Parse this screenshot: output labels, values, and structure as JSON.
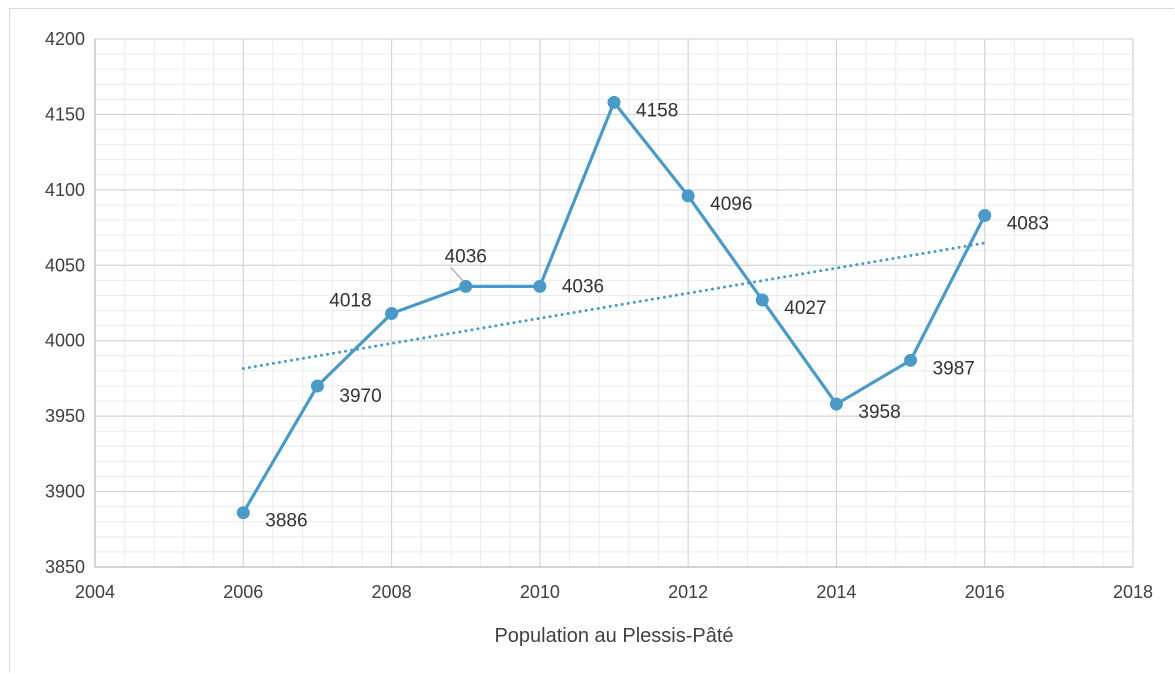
{
  "chart_data": {
    "type": "line",
    "xlabel": "Population au Plessis-Pâté",
    "ylabel": "",
    "title": "",
    "xlim": [
      2004,
      2018
    ],
    "ylim": [
      3850,
      4200
    ],
    "x_ticks": [
      2004,
      2006,
      2008,
      2010,
      2012,
      2014,
      2016,
      2018
    ],
    "y_ticks": [
      3850,
      3900,
      3950,
      4000,
      4050,
      4100,
      4150,
      4200
    ],
    "grid": true,
    "legend": "none",
    "series": [
      {
        "x": [
          2006,
          2007,
          2008,
          2009,
          2010,
          2011,
          2012,
          2013,
          2014,
          2015,
          2016
        ],
        "values": [
          3886,
          3970,
          4018,
          4036,
          4036,
          4158,
          4096,
          4027,
          3958,
          3987,
          4083
        ],
        "color": "#4a9ac8",
        "data_labels": true
      }
    ],
    "trendline": {
      "type": "linear",
      "style": "dotted",
      "color": "#4a9ac8",
      "x_range": [
        2006,
        2016
      ]
    }
  }
}
